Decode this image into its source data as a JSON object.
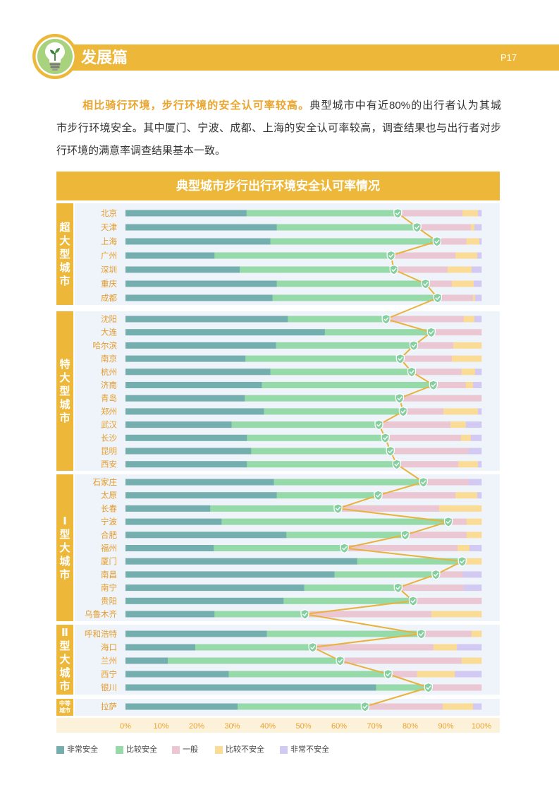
{
  "header": {
    "section_title": "发展篇",
    "page_number": "P17",
    "logo_icon": "lightbulb-sprout-icon"
  },
  "paragraph": {
    "highlight": "相比骑行环境，步行环境的安全认可率较高。",
    "line1_rest": "典型城市中有近80%的出行者认为其城",
    "line2": "市步行环境安全。其中厦门、宁波、成都、上海的安全认可率较高，调查结果也与出行者对步",
    "line3": "行环境的满意率调查结果基本一致。"
  },
  "colors": {
    "accent": "#EDB83A",
    "highlight_text": "#E9A52E",
    "city_label": "#E69B2C",
    "axis_label": "#E9A232",
    "approval_line": "#E8B23C",
    "marker": "#86CFA0",
    "chart_bg": "#EEF4F9",
    "axis_bg": "#FCF2DA"
  },
  "chart_data": {
    "type": "bar",
    "orientation": "horizontal",
    "stacked": true,
    "title": "典型城市步行出行环境安全认可率情况",
    "groups": [
      {
        "name": "超大型城市",
        "categories": [
          "北京",
          "天津",
          "上海",
          "广州",
          "深圳",
          "重庆",
          "成都"
        ]
      },
      {
        "name": "特大型城市",
        "categories": [
          "沈阳",
          "大连",
          "哈尔滨",
          "南京",
          "杭州",
          "济南",
          "青岛",
          "郑州",
          "武汉",
          "长沙",
          "昆明",
          "西安"
        ]
      },
      {
        "name": "Ⅰ型大城市",
        "categories": [
          "石家庄",
          "太原",
          "长春",
          "宁波",
          "合肥",
          "福州",
          "厦门",
          "南昌",
          "南宁",
          "贵阳",
          "乌鲁木齐"
        ]
      },
      {
        "name": "Ⅱ型大城市",
        "categories": [
          "呼和浩特",
          "海口",
          "兰州",
          "西宁",
          "银川"
        ]
      },
      {
        "name": "中等城市",
        "categories": [
          "拉萨"
        ]
      }
    ],
    "categories": [
      "北京",
      "天津",
      "上海",
      "广州",
      "深圳",
      "重庆",
      "成都",
      "沈阳",
      "大连",
      "哈尔滨",
      "南京",
      "杭州",
      "济南",
      "青岛",
      "郑州",
      "武汉",
      "长沙",
      "昆明",
      "西安",
      "石家庄",
      "太原",
      "长春",
      "宁波",
      "合肥",
      "福州",
      "厦门",
      "南昌",
      "南宁",
      "贵阳",
      "乌鲁木齐",
      "呼和浩特",
      "海口",
      "兰州",
      "西宁",
      "银川",
      "拉萨"
    ],
    "series": [
      {
        "name": "非常安全",
        "color": "#74AEAE",
        "values": [
          34.0,
          42.5,
          40.7,
          25.0,
          32.1,
          42.5,
          41.3,
          45.6,
          56.0,
          42.3,
          33.7,
          40.7,
          38.3,
          33.5,
          38.9,
          29.8,
          34.1,
          35.3,
          34.1,
          41.7,
          42.5,
          23.8,
          27.0,
          45.2,
          24.8,
          65.1,
          58.7,
          50.2,
          44.4,
          25.0,
          39.7,
          19.6,
          11.9,
          29.0,
          70.4,
          31.5
        ]
      },
      {
        "name": "比较安全",
        "color": "#97DAAA",
        "values": [
          42.5,
          39.4,
          46.8,
          49.6,
          43.3,
          41.8,
          46.4,
          27.6,
          29.9,
          38.7,
          43.5,
          39.7,
          48.2,
          43.5,
          39.1,
          41.4,
          38.9,
          39.1,
          42.1,
          42.0,
          28.5,
          35.9,
          63.7,
          33.4,
          36.7,
          29.5,
          28.5,
          26.4,
          36.4,
          25.4,
          43.4,
          33.0,
          48.4,
          44.8,
          14.7,
          35.8
        ]
      },
      {
        "name": "一般",
        "color": "#EAC7D2",
        "values": [
          18.2,
          15.1,
          8.3,
          18.1,
          15.1,
          7.4,
          9.9,
          21.8,
          14.1,
          11.1,
          14.5,
          14.0,
          9.1,
          23.0,
          11.3,
          20.1,
          21.2,
          22.0,
          17.3,
          12.7,
          21.7,
          28.4,
          5.1,
          17.2,
          31.8,
          1.2,
          7.6,
          18.4,
          19.2,
          35.5,
          14.1,
          33.9,
          34.1,
          8.1,
          14.9,
          21.8
        ]
      },
      {
        "name": "比较不安全",
        "color": "#FBDC96",
        "values": [
          4.3,
          1.0,
          3.6,
          6.1,
          6.7,
          6.1,
          0.6,
          3.0,
          0,
          7.9,
          8.3,
          3.8,
          2.0,
          0,
          9.7,
          4.3,
          2.8,
          0,
          5.5,
          0,
          6.1,
          11.9,
          4.2,
          4.2,
          3.3,
          4.2,
          0,
          0,
          0,
          14.1,
          2.8,
          6.6,
          5.6,
          10.6,
          0,
          8.5
        ]
      },
      {
        "name": "非常不安全",
        "color": "#D2CAF3",
        "values": [
          1.0,
          2.0,
          0.6,
          1.2,
          2.8,
          2.2,
          1.8,
          2.0,
          0,
          0,
          0,
          1.8,
          2.4,
          0,
          1.0,
          4.4,
          3.0,
          3.6,
          1.0,
          3.6,
          1.2,
          0,
          0,
          0,
          3.4,
          0,
          5.2,
          5.0,
          0,
          0,
          0,
          6.9,
          0,
          7.5,
          0,
          2.4
        ]
      }
    ],
    "xlim": [
      0,
      100
    ],
    "x_ticks": [
      "0%",
      "10%",
      "20%",
      "30%",
      "40%",
      "50%",
      "60%",
      "70%",
      "80%",
      "90%",
      "100%"
    ],
    "grid": false,
    "legend_position": "bottom-left",
    "marker_icon": "shield-check-icon"
  }
}
